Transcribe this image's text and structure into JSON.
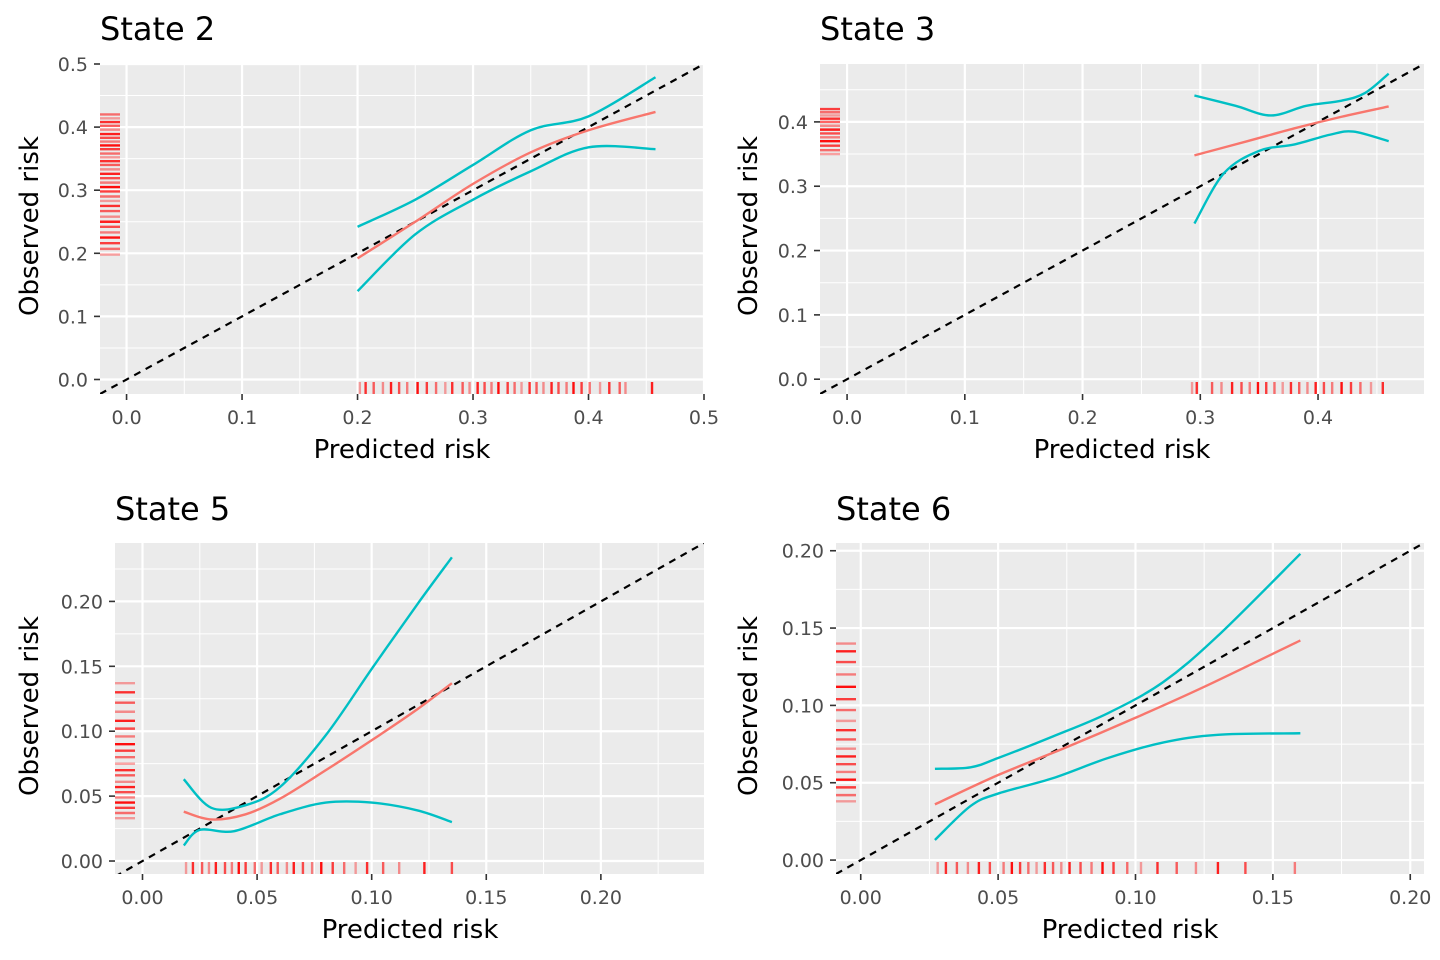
{
  "colors": {
    "panel_bg": "#EBEBEB",
    "grid": "#FFFFFF",
    "tick": "#333333",
    "calibration": "#F8766D",
    "ci": "#00BFC4",
    "diagonal": "#000000",
    "rug": "#FF0000"
  },
  "chart_data": [
    {
      "type": "line",
      "title": "State 2",
      "xlabel": "Predicted risk",
      "ylabel": "Observed risk",
      "xlim": [
        -0.023,
        0.5
      ],
      "ylim": [
        -0.023,
        0.5
      ],
      "x_ticks": [
        0.0,
        0.1,
        0.2,
        0.3,
        0.4,
        0.5
      ],
      "x_tick_labels": [
        "0.0",
        "0.1",
        "0.2",
        "0.3",
        "0.4",
        "0.5"
      ],
      "y_ticks": [
        0.0,
        0.1,
        0.2,
        0.3,
        0.4,
        0.5
      ],
      "y_tick_labels": [
        "0.0",
        "0.1",
        "0.2",
        "0.3",
        "0.4",
        "0.5"
      ],
      "diagonal": "y = x (dashed)",
      "series": [
        {
          "name": "calibration",
          "x": [
            0.2,
            0.25,
            0.3,
            0.35,
            0.4,
            0.458
          ],
          "y": [
            0.192,
            0.25,
            0.31,
            0.36,
            0.395,
            0.424
          ]
        },
        {
          "name": "ci_upper",
          "x": [
            0.2,
            0.25,
            0.3,
            0.35,
            0.4,
            0.458
          ],
          "y": [
            0.242,
            0.285,
            0.34,
            0.395,
            0.417,
            0.479
          ]
        },
        {
          "name": "ci_lower",
          "x": [
            0.2,
            0.25,
            0.3,
            0.35,
            0.4,
            0.458
          ],
          "y": [
            0.14,
            0.23,
            0.285,
            0.33,
            0.368,
            0.365
          ]
        }
      ],
      "rug_x": [
        0.202,
        0.207,
        0.214,
        0.222,
        0.229,
        0.236,
        0.243,
        0.252,
        0.26,
        0.268,
        0.276,
        0.282,
        0.291,
        0.297,
        0.304,
        0.31,
        0.316,
        0.322,
        0.33,
        0.336,
        0.342,
        0.349,
        0.355,
        0.361,
        0.368,
        0.374,
        0.381,
        0.387,
        0.394,
        0.401,
        0.41,
        0.418,
        0.427,
        0.432,
        0.455
      ],
      "rug_y": [
        0.198,
        0.207,
        0.216,
        0.225,
        0.233,
        0.242,
        0.25,
        0.258,
        0.267,
        0.275,
        0.283,
        0.29,
        0.298,
        0.305,
        0.312,
        0.319,
        0.326,
        0.333,
        0.34,
        0.346,
        0.352,
        0.358,
        0.365,
        0.371,
        0.377,
        0.383,
        0.389,
        0.396,
        0.402,
        0.408,
        0.414,
        0.42
      ]
    },
    {
      "type": "line",
      "title": "State 3",
      "xlabel": "Predicted risk",
      "ylabel": "Observed risk",
      "xlim": [
        -0.023,
        0.49
      ],
      "ylim": [
        -0.023,
        0.49
      ],
      "x_ticks": [
        0.0,
        0.1,
        0.2,
        0.3,
        0.4
      ],
      "x_tick_labels": [
        "0.0",
        "0.1",
        "0.2",
        "0.3",
        "0.4"
      ],
      "y_ticks": [
        0.0,
        0.1,
        0.2,
        0.3,
        0.4
      ],
      "y_tick_labels": [
        "0.0",
        "0.1",
        "0.2",
        "0.3",
        "0.4"
      ],
      "diagonal": "y = x (dashed)",
      "series": [
        {
          "name": "calibration",
          "x": [
            0.295,
            0.34,
            0.38,
            0.42,
            0.46
          ],
          "y": [
            0.348,
            0.37,
            0.39,
            0.408,
            0.424
          ]
        },
        {
          "name": "ci_upper",
          "x": [
            0.295,
            0.33,
            0.36,
            0.39,
            0.42,
            0.44,
            0.46
          ],
          "y": [
            0.441,
            0.425,
            0.41,
            0.425,
            0.433,
            0.445,
            0.475
          ]
        },
        {
          "name": "ci_lower",
          "x": [
            0.295,
            0.32,
            0.35,
            0.38,
            0.41,
            0.43,
            0.46
          ],
          "y": [
            0.242,
            0.32,
            0.355,
            0.365,
            0.38,
            0.385,
            0.37
          ]
        }
      ],
      "rug_x": [
        0.293,
        0.297,
        0.31,
        0.318,
        0.327,
        0.335,
        0.342,
        0.349,
        0.356,
        0.363,
        0.37,
        0.377,
        0.384,
        0.391,
        0.398,
        0.405,
        0.412,
        0.42,
        0.428,
        0.436,
        0.445,
        0.455
      ],
      "rug_y": [
        0.35,
        0.356,
        0.363,
        0.37,
        0.376,
        0.382,
        0.388,
        0.394,
        0.4,
        0.405,
        0.41,
        0.415,
        0.42
      ]
    },
    {
      "type": "line",
      "title": "State 5",
      "xlabel": "Predicted risk",
      "ylabel": "Observed risk",
      "xlim": [
        -0.012,
        0.245
      ],
      "ylim": [
        -0.01,
        0.245
      ],
      "x_ticks": [
        0.0,
        0.05,
        0.1,
        0.15,
        0.2
      ],
      "x_tick_labels": [
        "0.00",
        "0.05",
        "0.10",
        "0.15",
        "0.20"
      ],
      "y_ticks": [
        0.0,
        0.05,
        0.1,
        0.15,
        0.2
      ],
      "y_tick_labels": [
        "0.00",
        "0.05",
        "0.10",
        "0.15",
        "0.20"
      ],
      "diagonal": "y = x (dashed)",
      "series": [
        {
          "name": "calibration",
          "x": [
            0.018,
            0.03,
            0.045,
            0.06,
            0.08,
            0.1,
            0.12,
            0.135
          ],
          "y": [
            0.038,
            0.032,
            0.036,
            0.048,
            0.07,
            0.093,
            0.117,
            0.137
          ]
        },
        {
          "name": "ci_upper",
          "x": [
            0.018,
            0.03,
            0.045,
            0.06,
            0.08,
            0.1,
            0.12,
            0.135
          ],
          "y": [
            0.063,
            0.041,
            0.043,
            0.057,
            0.097,
            0.148,
            0.198,
            0.234
          ]
        },
        {
          "name": "ci_lower",
          "x": [
            0.018,
            0.025,
            0.04,
            0.06,
            0.08,
            0.1,
            0.12,
            0.135
          ],
          "y": [
            0.012,
            0.024,
            0.023,
            0.036,
            0.045,
            0.045,
            0.039,
            0.03
          ]
        }
      ],
      "rug_x": [
        0.019,
        0.022,
        0.026,
        0.029,
        0.032,
        0.036,
        0.039,
        0.042,
        0.045,
        0.049,
        0.052,
        0.056,
        0.059,
        0.063,
        0.066,
        0.07,
        0.074,
        0.078,
        0.083,
        0.088,
        0.093,
        0.098,
        0.105,
        0.112,
        0.123,
        0.135
      ],
      "rug_y": [
        0.033,
        0.037,
        0.041,
        0.045,
        0.049,
        0.053,
        0.057,
        0.061,
        0.066,
        0.07,
        0.075,
        0.08,
        0.085,
        0.09,
        0.096,
        0.102,
        0.108,
        0.115,
        0.122,
        0.13,
        0.137
      ]
    },
    {
      "type": "line",
      "title": "State 6",
      "xlabel": "Predicted risk",
      "ylabel": "Observed risk",
      "xlim": [
        -0.009,
        0.205
      ],
      "ylim": [
        -0.009,
        0.205
      ],
      "x_ticks": [
        0.0,
        0.05,
        0.1,
        0.15,
        0.2
      ],
      "x_tick_labels": [
        "0.00",
        "0.05",
        "0.10",
        "0.15",
        "0.20"
      ],
      "y_ticks": [
        0.0,
        0.05,
        0.1,
        0.15,
        0.2
      ],
      "y_tick_labels": [
        "0.00",
        "0.05",
        "0.10",
        "0.15",
        "0.20"
      ],
      "diagonal": "y = x (dashed)",
      "series": [
        {
          "name": "calibration",
          "x": [
            0.027,
            0.05,
            0.075,
            0.1,
            0.125,
            0.16
          ],
          "y": [
            0.036,
            0.055,
            0.073,
            0.092,
            0.112,
            0.142
          ]
        },
        {
          "name": "ci_upper",
          "x": [
            0.027,
            0.04,
            0.05,
            0.07,
            0.09,
            0.11,
            0.13,
            0.16
          ],
          "y": [
            0.059,
            0.06,
            0.066,
            0.08,
            0.095,
            0.115,
            0.145,
            0.198
          ]
        },
        {
          "name": "ci_lower",
          "x": [
            0.027,
            0.04,
            0.05,
            0.07,
            0.09,
            0.11,
            0.13,
            0.16
          ],
          "y": [
            0.013,
            0.035,
            0.043,
            0.053,
            0.066,
            0.076,
            0.081,
            0.082
          ]
        }
      ],
      "rug_x": [
        0.028,
        0.031,
        0.035,
        0.039,
        0.043,
        0.047,
        0.052,
        0.055,
        0.058,
        0.061,
        0.064,
        0.067,
        0.07,
        0.073,
        0.076,
        0.08,
        0.084,
        0.088,
        0.092,
        0.097,
        0.102,
        0.108,
        0.115,
        0.122,
        0.13,
        0.14,
        0.158
      ],
      "rug_y": [
        0.038,
        0.042,
        0.047,
        0.052,
        0.057,
        0.062,
        0.067,
        0.072,
        0.078,
        0.084,
        0.09,
        0.097,
        0.104,
        0.112,
        0.12,
        0.128,
        0.135,
        0.14
      ]
    }
  ]
}
